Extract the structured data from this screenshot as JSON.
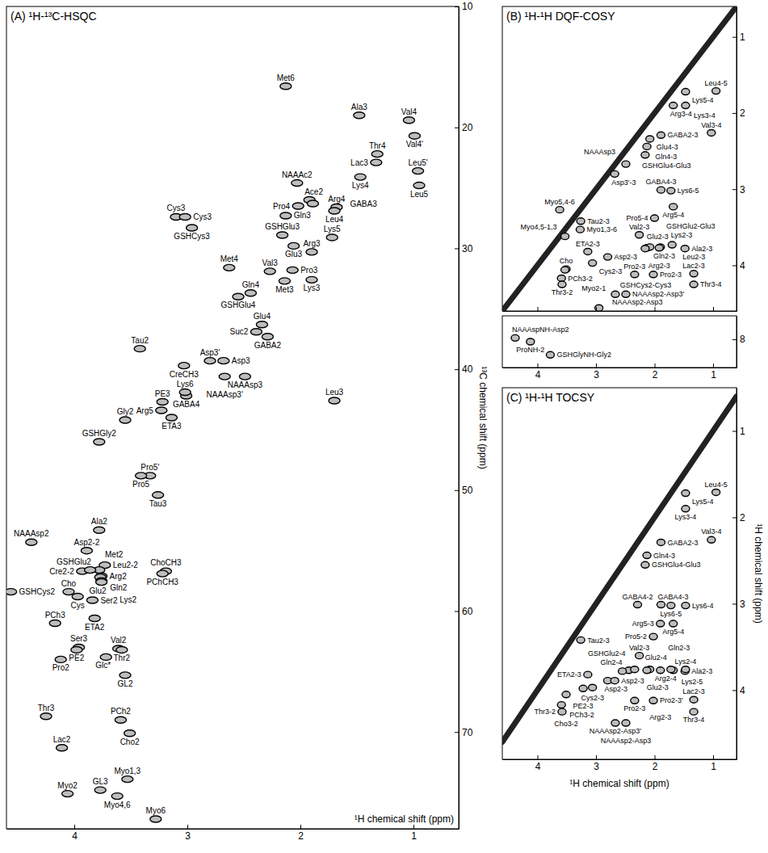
{
  "chart_data": [
    {
      "type": "scatter",
      "title": "(A) ¹H-¹³C-HSQC",
      "x_label": "¹H chemical shift (ppm)",
      "y_label": "¹³C chemical shift (ppm)",
      "xlim": [
        4.6,
        0.6
      ],
      "ylim": [
        10,
        78
      ],
      "xticks": [
        4,
        3,
        2,
        1
      ],
      "yticks": [
        10,
        20,
        30,
        40,
        50,
        60,
        70
      ],
      "labels": [
        "Met6",
        "Val4",
        "Val4'",
        "Ala3",
        "Thr4",
        "Leu5'",
        "Lac3",
        "NAAAc2",
        "Ace2",
        "Pro4",
        "Arg4",
        "Lys4",
        "Leu4",
        "Leu5",
        "Cys3",
        "Cys3",
        "GSHCys3",
        "GSHGlu3",
        "Gln3",
        "Glu3",
        "GABA3",
        "Lys5",
        "Arg3",
        "Pro3",
        "Met4",
        "Val3",
        "Lys3",
        "Met3",
        "GSHGlu4",
        "Gln4",
        "Glu4",
        "Suc2",
        "GABA2",
        "Asp3'",
        "Asp3",
        "Tau2",
        "CreCH3",
        "GABA4",
        "PE3",
        "Lys6",
        "NAAAsp3",
        "NAAAsp3'",
        "Leu3",
        "Arg5",
        "ETA3",
        "Gly2",
        "GSHGly2",
        "Pro5'",
        "Pro5",
        "Tau3",
        "Ala2",
        "NAAAsp2",
        "Asp2-2",
        "Cre2-2",
        "Leu2-2",
        "ChoCH3",
        "PChCH3",
        "Arg2",
        "Gln2",
        "Cho",
        "Lys2",
        "GSHGlu2",
        "Glu2",
        "GSHCys2",
        "Cys",
        "Ser2",
        "Met2",
        "ETA2",
        "PCh3",
        "Ser3",
        "PE2",
        "Val2",
        "Pro2",
        "Thr2",
        "Glc*",
        "GL2",
        "Thr3",
        "PCh2",
        "Cho2",
        "Lac2",
        "GL3",
        "Myo1,3",
        "Myo2",
        "Myo4,6",
        "Myo6"
      ],
      "x": [
        2.13,
        1.04,
        0.99,
        1.48,
        1.32,
        0.96,
        1.33,
        2.03,
        1.92,
        2.02,
        1.68,
        1.47,
        1.7,
        0.95,
        3.1,
        3.02,
        2.96,
        2.16,
        2.13,
        2.06,
        1.89,
        1.72,
        1.9,
        2.07,
        2.63,
        2.27,
        1.9,
        2.14,
        2.55,
        2.44,
        2.34,
        2.39,
        2.29,
        2.8,
        2.68,
        3.42,
        3.03,
        3.01,
        3.22,
        3.02,
        2.49,
        2.67,
        1.7,
        3.23,
        3.14,
        3.55,
        3.78,
        3.33,
        3.41,
        3.26,
        3.78,
        4.38,
        3.89,
        3.93,
        3.73,
        3.19,
        3.22,
        3.76,
        3.77,
        4.05,
        3.76,
        3.78,
        3.76,
        4.56,
        3.97,
        3.84,
        3.86,
        3.82,
        4.17,
        3.96,
        3.98,
        3.61,
        4.12,
        3.58,
        3.72,
        3.55,
        4.25,
        3.59,
        3.51,
        4.11,
        3.77,
        3.53,
        4.06,
        3.62,
        3.28
      ],
      "values": [
        16.6,
        19.4,
        20.7,
        19.0,
        22.2,
        23.6,
        22.9,
        24.6,
        26.0,
        26.5,
        26.6,
        24.1,
        26.9,
        24.8,
        27.4,
        27.4,
        28.3,
        28.9,
        27.3,
        29.8,
        26.3,
        29.1,
        30.3,
        31.8,
        31.6,
        31.9,
        32.6,
        32.7,
        34.0,
        33.7,
        36.3,
        36.9,
        37.3,
        39.3,
        39.3,
        38.3,
        39.7,
        42.2,
        42.7,
        41.9,
        40.6,
        40.6,
        42.6,
        43.4,
        44.0,
        44.2,
        46.0,
        48.8,
        48.8,
        50.4,
        53.3,
        54.3,
        55.0,
        56.7,
        56.2,
        56.7,
        56.9,
        57.1,
        57.2,
        58.4,
        57.5,
        56.6,
        57.6,
        58.4,
        58.8,
        59.1,
        56.6,
        60.6,
        61.0,
        63.0,
        63.2,
        63.1,
        64.0,
        63.2,
        63.8,
        65.3,
        68.7,
        69.0,
        70.1,
        71.3,
        74.8,
        73.9,
        75.1,
        75.3,
        77.2
      ]
    },
    {
      "type": "scatter",
      "title": "(B) ¹H-¹H DQF-COSY",
      "tick_labels": "y",
      "xlim": [
        4.6,
        0.6
      ],
      "ylim": [
        0.6,
        4.6
      ],
      "xticks": [
        4,
        3,
        2,
        1
      ],
      "yticks": [
        1,
        2,
        3,
        4
      ],
      "labels": [
        "Leu4-5",
        "Lys5-4",
        "Arg3-4",
        "Lys3-4",
        "Val3-4",
        "Glu4-3",
        "GABA2-3",
        "Gln4-3",
        "GSHGlu4-Glu3",
        "GABA4-3",
        "Lys6-5",
        "Arg5-4",
        "Myo4,5-1,3",
        "NAAAsp3",
        "Asp3'-3",
        "Tau2-3",
        "Myo1,3-6",
        "Myo5,4-6",
        "Val2-3",
        "Pro5-4",
        "ETA2-3",
        "Cho",
        "PCh3-2",
        "Thr3-2",
        "Myo2-1",
        "GSHCys2-Cys3",
        "Cys2-3",
        "Asp2-3",
        "Gln2-3",
        "Glu2-3",
        "Lys2-3",
        "Leu2-3",
        "Ala2-3",
        "Arg2-3",
        "GSHGlu2-Glu3",
        "Pro2-3",
        "Pro2-3",
        "NAAAsp2-Asp3",
        "NAAAsp2-Asp3'",
        "Lac2-3",
        "Thr3-4"
      ],
      "x": [
        0.95,
        1.47,
        1.68,
        1.47,
        1.03,
        2.08,
        1.89,
        2.13,
        2.16,
        1.89,
        1.72,
        1.68,
        3.53,
        2.49,
        2.68,
        3.26,
        3.27,
        3.62,
        2.26,
        2.0,
        3.14,
        3.51,
        3.59,
        3.58,
        3.53,
        2.95,
        3.06,
        2.8,
        2.13,
        2.08,
        1.9,
        1.7,
        1.48,
        1.92,
        2.16,
        2.34,
        2.02,
        2.67,
        2.49,
        1.33,
        1.33
      ],
      "values": [
        1.71,
        1.72,
        1.9,
        1.9,
        2.26,
        2.34,
        2.29,
        2.44,
        2.55,
        3.01,
        3.02,
        3.23,
        3.62,
        2.67,
        2.8,
        3.42,
        3.53,
        3.27,
        3.6,
        3.38,
        3.82,
        4.05,
        4.17,
        4.25,
        4.06,
        4.56,
        3.97,
        3.89,
        3.77,
        3.76,
        3.76,
        3.73,
        3.78,
        3.77,
        3.78,
        4.12,
        4.12,
        4.38,
        4.38,
        4.11,
        4.25
      ]
    },
    {
      "type": "scatter",
      "xlim": [
        4.6,
        0.6
      ],
      "ylim": [
        7.5,
        8.6
      ],
      "xticks": [
        4,
        3,
        2,
        1
      ],
      "yticks": [
        8
      ],
      "labels": [
        "NAAAspNH-Asp2",
        "ProNH-2",
        "GSHGlyNH-Gly2"
      ],
      "x": [
        4.38,
        4.12,
        3.78
      ],
      "values": [
        7.97,
        8.05,
        8.33
      ]
    },
    {
      "type": "scatter",
      "title": "(C) ¹H-¹H TOCSY",
      "x_label": "¹H chemical shift (ppm)",
      "y_label": "¹H chemical shift (ppm)",
      "xlim": [
        4.6,
        0.6
      ],
      "ylim": [
        0.5,
        4.8
      ],
      "xticks": [
        4,
        3,
        2,
        1
      ],
      "yticks": [
        1,
        2,
        3,
        4
      ],
      "labels": [
        "Lys5-4",
        "Leu4-5",
        "Lys3-4",
        "Val3-4",
        "GABA2-3",
        "Gln4-3",
        "GSHGlu4-Glu3",
        "GABA4-2",
        "Lys6-5",
        "GABA4-3",
        "Lys6-4",
        "Arg5-4",
        "Tau2-3",
        "Val2-3",
        "Pro5-2",
        "Gln2-4",
        "Arg5-3",
        "Arg2-4",
        "Asp2-3",
        "Asp2-3",
        "ETA2-3",
        "Glu2-4",
        "Glu2-3",
        "Ala2-3",
        "Lys2-4",
        "Gln2-3",
        "Lys2-5",
        "Arg2-3",
        "GSHGlu2-4",
        "Cys2-3",
        "PE2-3",
        "Cho3-2",
        "PCh3-2",
        "Thr3-2",
        "Pro2-3",
        "Pro2-3'",
        "Lac2-3",
        "Thr3-4",
        "NAAAsp2-Asp3'",
        "NAAAsp2-Asp3"
      ],
      "x": [
        1.47,
        0.95,
        1.47,
        1.03,
        1.89,
        2.13,
        2.16,
        2.29,
        1.72,
        1.89,
        1.47,
        1.68,
        3.26,
        2.26,
        2.02,
        2.44,
        1.9,
        1.68,
        2.8,
        2.68,
        3.14,
        2.34,
        2.08,
        1.48,
        1.47,
        2.13,
        1.72,
        1.9,
        2.55,
        3.06,
        3.22,
        3.51,
        3.59,
        3.58,
        2.34,
        2.02,
        1.33,
        1.33,
        2.67,
        2.49
      ],
      "values": [
        1.72,
        1.71,
        1.9,
        2.26,
        2.29,
        2.44,
        2.55,
        3.01,
        3.02,
        3.01,
        3.02,
        3.23,
        3.42,
        3.6,
        3.38,
        3.77,
        3.23,
        3.77,
        3.89,
        3.89,
        3.82,
        3.76,
        3.76,
        3.78,
        3.76,
        3.77,
        3.76,
        3.77,
        3.78,
        3.97,
        3.98,
        4.05,
        4.17,
        4.25,
        4.12,
        4.12,
        4.11,
        4.25,
        4.38,
        4.38
      ]
    }
  ]
}
